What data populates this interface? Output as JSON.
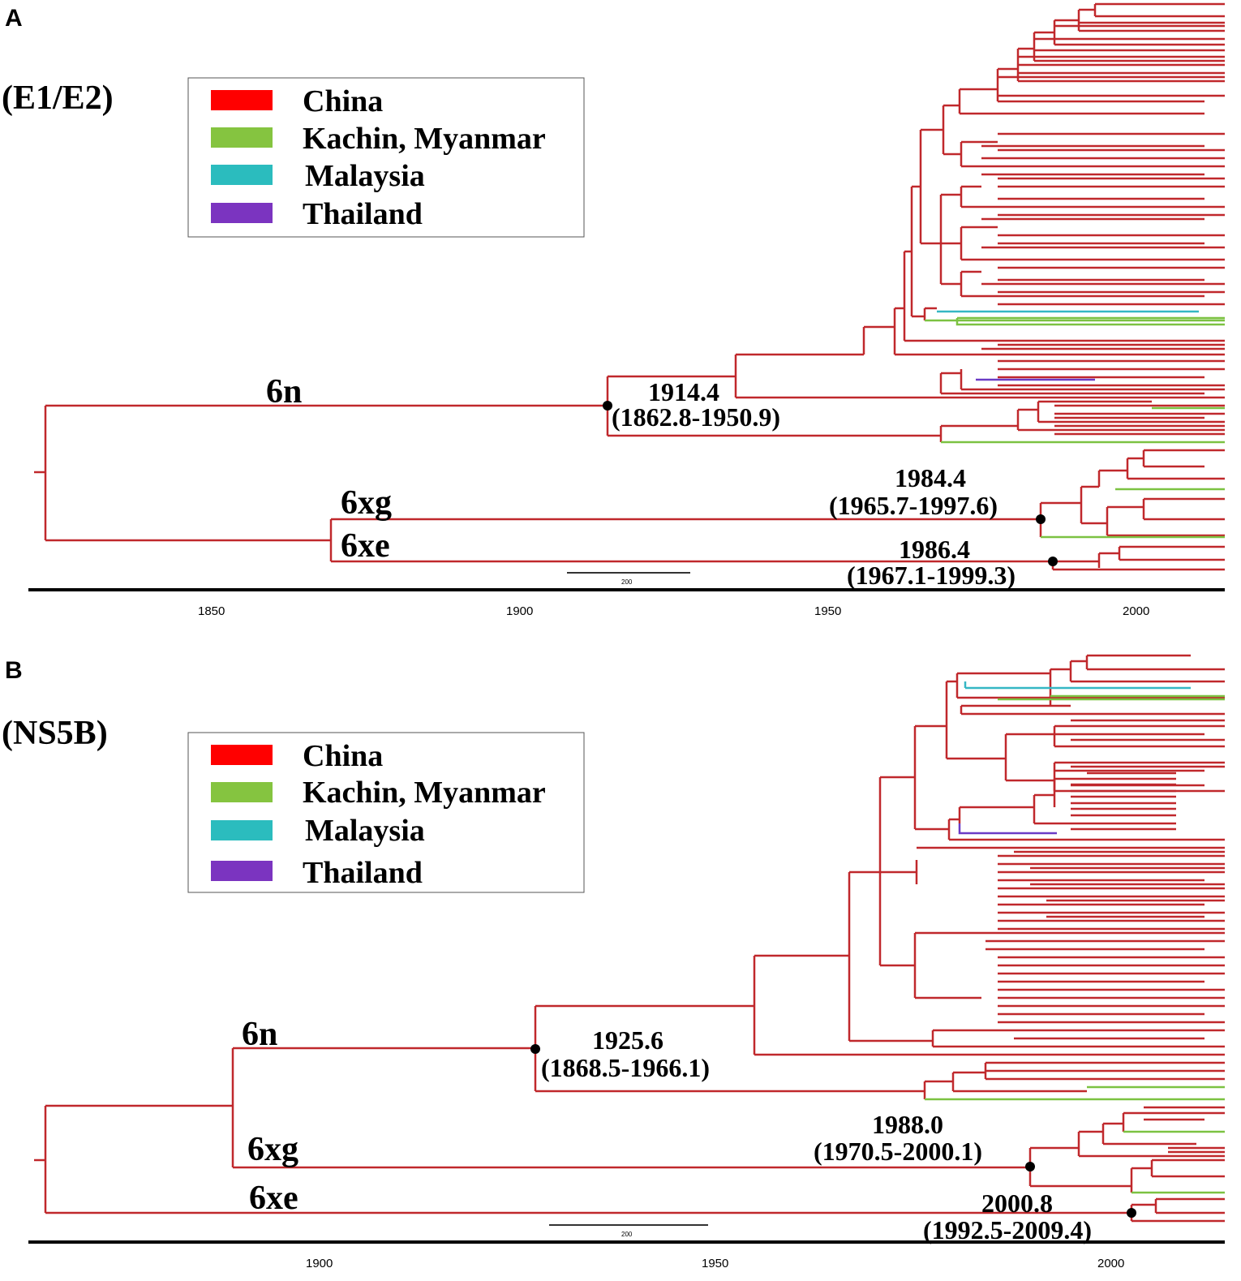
{
  "panels": [
    {
      "id": "A",
      "letter": "A",
      "gene": "(E1/E2)",
      "legend": [
        {
          "label": "China",
          "color": "#ff0000"
        },
        {
          "label": "Kachin, Myanmar",
          "color": "#85c440"
        },
        {
          "label": "Malaysia",
          "color": "#2bbcbe"
        },
        {
          "label": "Thailand",
          "color": "#7b34c0"
        }
      ],
      "clades": [
        "6n",
        "6xg",
        "6xe"
      ],
      "nodes": [
        {
          "date": "1914.4",
          "hpd": "(1862.8-1950.9)"
        },
        {
          "date": "1984.4",
          "hpd": "(1965.7-1997.6)"
        },
        {
          "date": "1986.4",
          "hpd": "(1967.1-1999.3)"
        }
      ],
      "axis_ticks": [
        "1850",
        "1900",
        "1950",
        "2000"
      ],
      "scale_label": "200"
    },
    {
      "id": "B",
      "letter": "B",
      "gene": "(NS5B)",
      "legend": [
        {
          "label": "China",
          "color": "#ff0000"
        },
        {
          "label": "Kachin, Myanmar",
          "color": "#85c440"
        },
        {
          "label": "Malaysia",
          "color": "#2bbcbe"
        },
        {
          "label": "Thailand",
          "color": "#7b34c0"
        }
      ],
      "clades": [
        "6n",
        "6xg",
        "6xe"
      ],
      "nodes": [
        {
          "date": "1925.6",
          "hpd": "(1868.5-1966.1)"
        },
        {
          "date": "1988.0",
          "hpd": "(1970.5-2000.1)"
        },
        {
          "date": "2000.8",
          "hpd": "(1992.5-2009.4)"
        }
      ],
      "axis_ticks": [
        "1900",
        "1950",
        "2000"
      ],
      "scale_label": "200"
    }
  ],
  "branch_colors": {
    "china": "#c0282c",
    "kachin": "#7cc242",
    "malaysia": "#35b7c4",
    "thailand": "#6a3bc6"
  }
}
